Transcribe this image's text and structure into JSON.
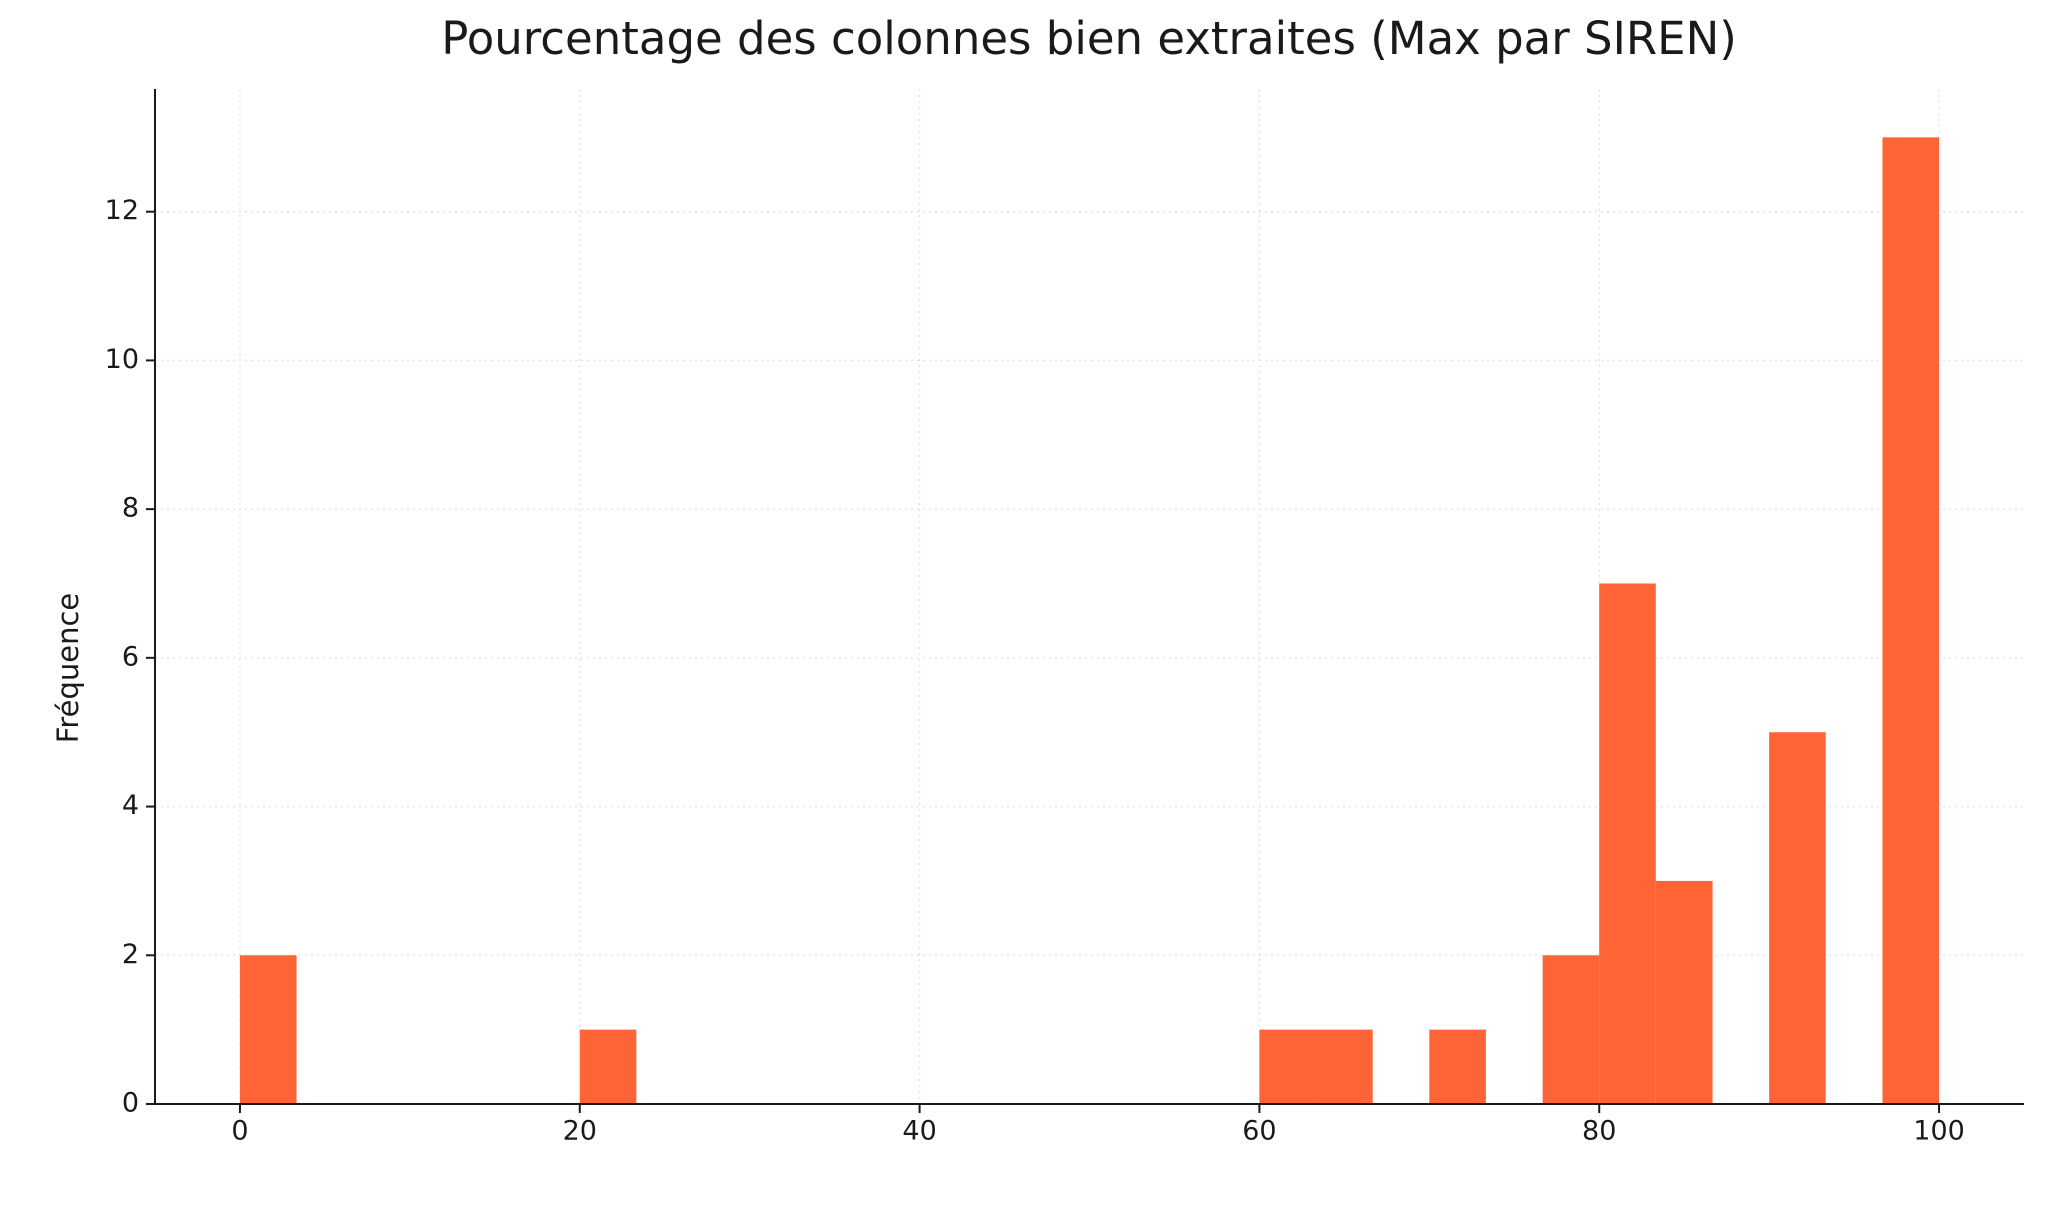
{
  "chart_data": {
    "type": "histogram",
    "title": "Pourcentage des colonnes bien extraites (Max par SIREN)",
    "y_label": "Fréquence",
    "bins": [
      0,
      3.33,
      6.67,
      10,
      13.33,
      16.67,
      20,
      23.33,
      26.67,
      30,
      33.33,
      36.67,
      40,
      43.33,
      46.67,
      50,
      53.33,
      56.67,
      60,
      63.33,
      66.67,
      70,
      73.33,
      76.67,
      80,
      83.33,
      86.67,
      90,
      93.33,
      96.67,
      100
    ],
    "values": [
      2,
      0,
      0,
      0,
      0,
      0,
      1,
      0,
      0,
      0,
      0,
      0,
      0,
      0,
      0,
      0,
      0,
      0,
      1,
      1,
      0,
      1,
      0,
      2,
      7,
      3,
      0,
      5,
      0,
      13
    ],
    "color": "#ff6437",
    "xlim": [
      -5,
      105
    ],
    "xticks": [
      0,
      20,
      40,
      60,
      80,
      100
    ],
    "ylim": [
      0,
      13.65
    ],
    "yticks": [
      0,
      2,
      4,
      6,
      8,
      10,
      12
    ],
    "grid": true
  }
}
